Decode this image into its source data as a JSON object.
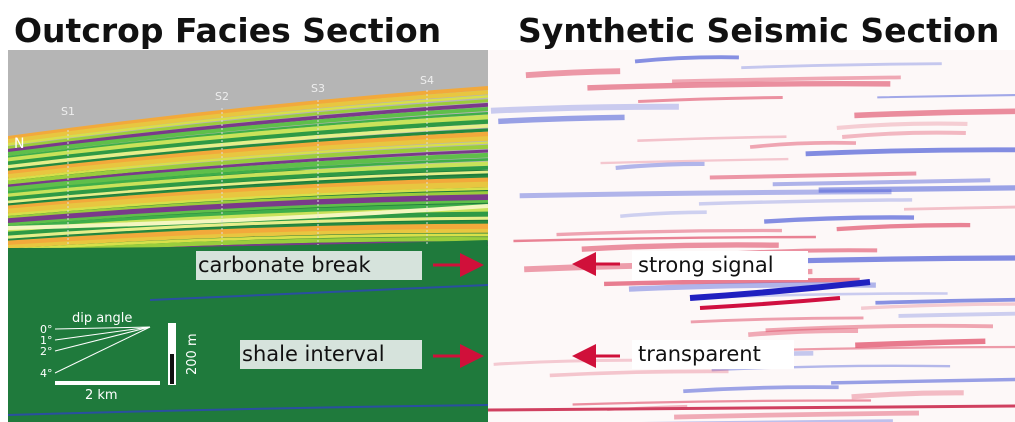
{
  "panels": [
    {
      "title": "Outcrop Facies Section",
      "stations": [
        "S1",
        "S2",
        "S3",
        "S4"
      ],
      "north": "N",
      "annotations": [
        "carbonate break",
        "shale interval"
      ],
      "legend": {
        "title": "dip angle",
        "angles": [
          "0°",
          "1°",
          "2°",
          "4°"
        ],
        "horizontal_scale": "2 km",
        "vertical_scale": "200 m"
      }
    },
    {
      "title": "Synthetic Seismic Section",
      "annotations": [
        "strong signal",
        "transparent"
      ]
    }
  ]
}
